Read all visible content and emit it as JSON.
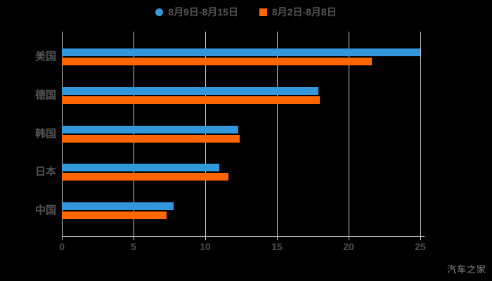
{
  "legend": {
    "items": [
      {
        "label": "8月9日-8月15日",
        "color": "#3398db",
        "shape": "circle"
      },
      {
        "label": "8月2日-8月8日",
        "color": "#ff6600",
        "shape": "square"
      }
    ]
  },
  "chart_data": {
    "type": "bar",
    "orientation": "horizontal",
    "categories": [
      "美国",
      "德国",
      "韩国",
      "日本",
      "中国"
    ],
    "series": [
      {
        "name": "8月9日-8月15日",
        "color": "#3398db",
        "values": [
          25.0,
          17.9,
          12.3,
          11.0,
          7.8
        ]
      },
      {
        "name": "8月2日-8月8日",
        "color": "#ff6600",
        "values": [
          21.6,
          18.0,
          12.4,
          11.6,
          7.3
        ]
      }
    ],
    "xlim": [
      0,
      25
    ],
    "x_ticks": [
      0,
      5,
      10,
      15,
      20,
      25
    ],
    "grid": true,
    "legend_position": "top",
    "background": "#000000",
    "gridline_color": "#cccccc",
    "axis_line_color": "#cccccc",
    "tick_label_color": "#4d4d4d",
    "category_label_color": "#555555"
  },
  "watermark": {
    "text": "汽车之家",
    "color": "#8f8f8f"
  }
}
